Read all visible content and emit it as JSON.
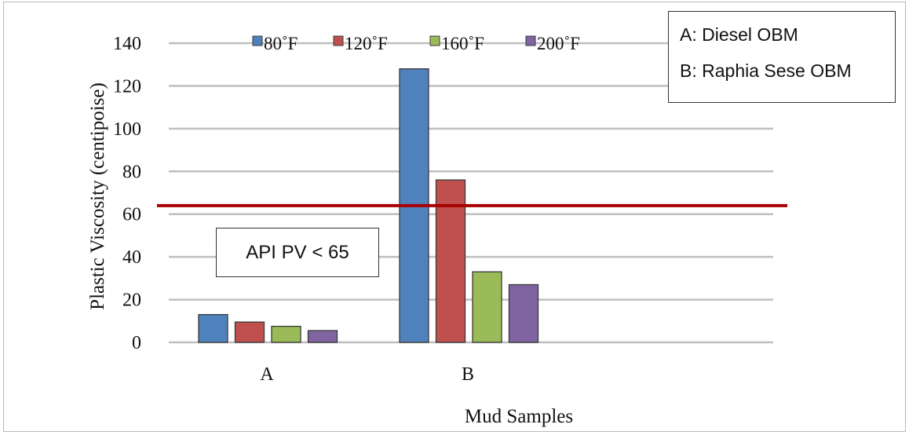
{
  "chart_data": {
    "type": "bar",
    "categories": [
      "A",
      "B"
    ],
    "series": [
      {
        "name": "80˚F",
        "color": "#4f81bd",
        "values": [
          13,
          128
        ]
      },
      {
        "name": "120˚F",
        "color": "#c0504d",
        "values": [
          9.5,
          76
        ]
      },
      {
        "name": "160˚F",
        "color": "#9bbb59",
        "values": [
          7.5,
          33
        ]
      },
      {
        "name": "200˚F",
        "color": "#8064a2",
        "values": [
          5.5,
          27
        ]
      }
    ],
    "ylabel": "Plastic Viscosity (centipoise)",
    "xlabel": "Mud Samples",
    "ylim": [
      0,
      140
    ],
    "yticks": [
      0,
      20,
      40,
      60,
      80,
      100,
      120,
      140
    ],
    "grid": true,
    "legend": "top",
    "reference_line": {
      "value": 64,
      "color": "#a80000",
      "label": "API PV < 65"
    },
    "notes": [
      "A: Diesel OBM",
      "B: Raphia Sese OBM"
    ]
  }
}
